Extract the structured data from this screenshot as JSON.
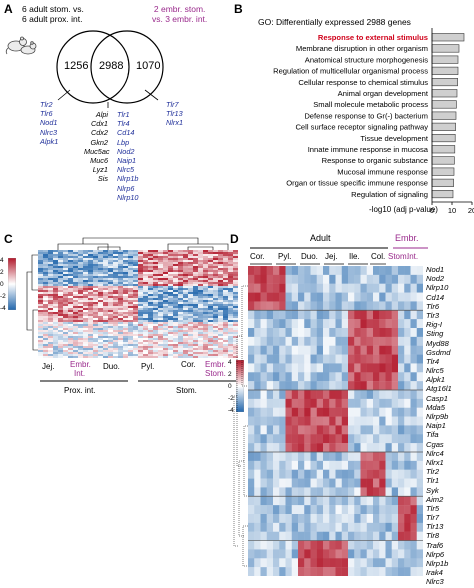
{
  "panels": {
    "A": {
      "label": "A",
      "left_title": [
        "6 adult stom. vs.",
        "6 adult prox. int."
      ],
      "right_title": [
        "2 embr. stom.",
        "vs. 3 embr. int."
      ],
      "venn": {
        "left": "1256",
        "center": "2988",
        "right": "1070"
      },
      "left_genes": [
        "Tlr2",
        "Tlr6",
        "Nod1",
        "Nlrc3",
        "Alpk1"
      ],
      "center_genes_black": [
        "Alpi",
        "Cdx1",
        "Cdx2",
        "Gkn2",
        "Muc5ac",
        "Muc6",
        "Lyz1",
        "Sis"
      ],
      "center_genes_blue": [
        "Tlr1",
        "Tlr4",
        "Cd14",
        "Lbp",
        "Nod2",
        "Naip1",
        "Nlrc5",
        "Nlrp1b",
        "Nlrp6",
        "Nlrp10"
      ],
      "right_genes": [
        "Tlr7",
        "Tlr13",
        "Nlrx1"
      ]
    },
    "B": {
      "label": "B",
      "title": "GO: Differentially expressed 2988 genes",
      "xlabel": "-log10 (adj p-value)"
    },
    "C": {
      "label": "C",
      "scale": [
        "4",
        "2",
        "0",
        "-2",
        "-4"
      ],
      "groups": [
        "Jej.",
        "Embr.",
        "Int.",
        "Duo.",
        "Pyl.",
        "Cor.",
        "Embr.",
        "Stom."
      ],
      "bottom": [
        "Prox. int.",
        "Stom."
      ]
    },
    "D": {
      "label": "D",
      "adult": "Adult",
      "embr": "Embr.",
      "columns": [
        "Cor.",
        "Pyl.",
        "Duo.",
        "Jej.",
        "Ile.",
        "Col."
      ],
      "embr_columns": [
        "Stom.",
        "Int."
      ],
      "scale": [
        "4",
        "2",
        "0",
        "-2",
        "-4"
      ],
      "genes": [
        "Nod1",
        "Nod2",
        "Nlrp10",
        "Cd14",
        "Tlr6",
        "Tlr3",
        "Rig-I",
        "Sting",
        "Myd88",
        "Gsdmd",
        "Tlr4",
        "Nlrc5",
        "Alpk1",
        "Atg16l1",
        "Casp1",
        "Mda5",
        "Nlrp9b",
        "Naip1",
        "Tifa",
        "Cgas",
        "Nlrc4",
        "Nlrx1",
        "Tlr2",
        "Tlr1",
        "Syk",
        "Aim2",
        "Tlr5",
        "Tlr7",
        "Tlr13",
        "Tlr8",
        "Traf6",
        "Nlrp6",
        "Nlrp1b",
        "Irak4",
        "Nlrc3"
      ]
    }
  },
  "chart_data": {
    "type": "bar",
    "categories": [
      "Response to external stimulus",
      "Membrane disruption in other organism",
      "Anatomical structure morphogenesis",
      "Regulation of multicellular organismal process",
      "Cellular response to chemical stimulus",
      "Animal organ development",
      "Small molecule metabolic process",
      "Defense response to Gr(-) bacterium",
      "Cell surface receptor signaling pathway",
      "Tissue development",
      "Innate immune response in mucosa",
      "Response to organic substance",
      "Mucosal immune response",
      "Organ or tissue specific immune response",
      "Regulation of signaling"
    ],
    "values": [
      16,
      13.5,
      13,
      13,
      12.8,
      12.5,
      12.2,
      12,
      11.8,
      11.6,
      11.4,
      11.2,
      11,
      10.8,
      10.5
    ],
    "highlight_color": "#d0021b",
    "bar_color": "#cfcfcf",
    "xlabel": "-log10 (adj p-value)",
    "xlim": [
      0,
      20
    ],
    "xticks": [
      "0",
      "10",
      "20"
    ]
  }
}
